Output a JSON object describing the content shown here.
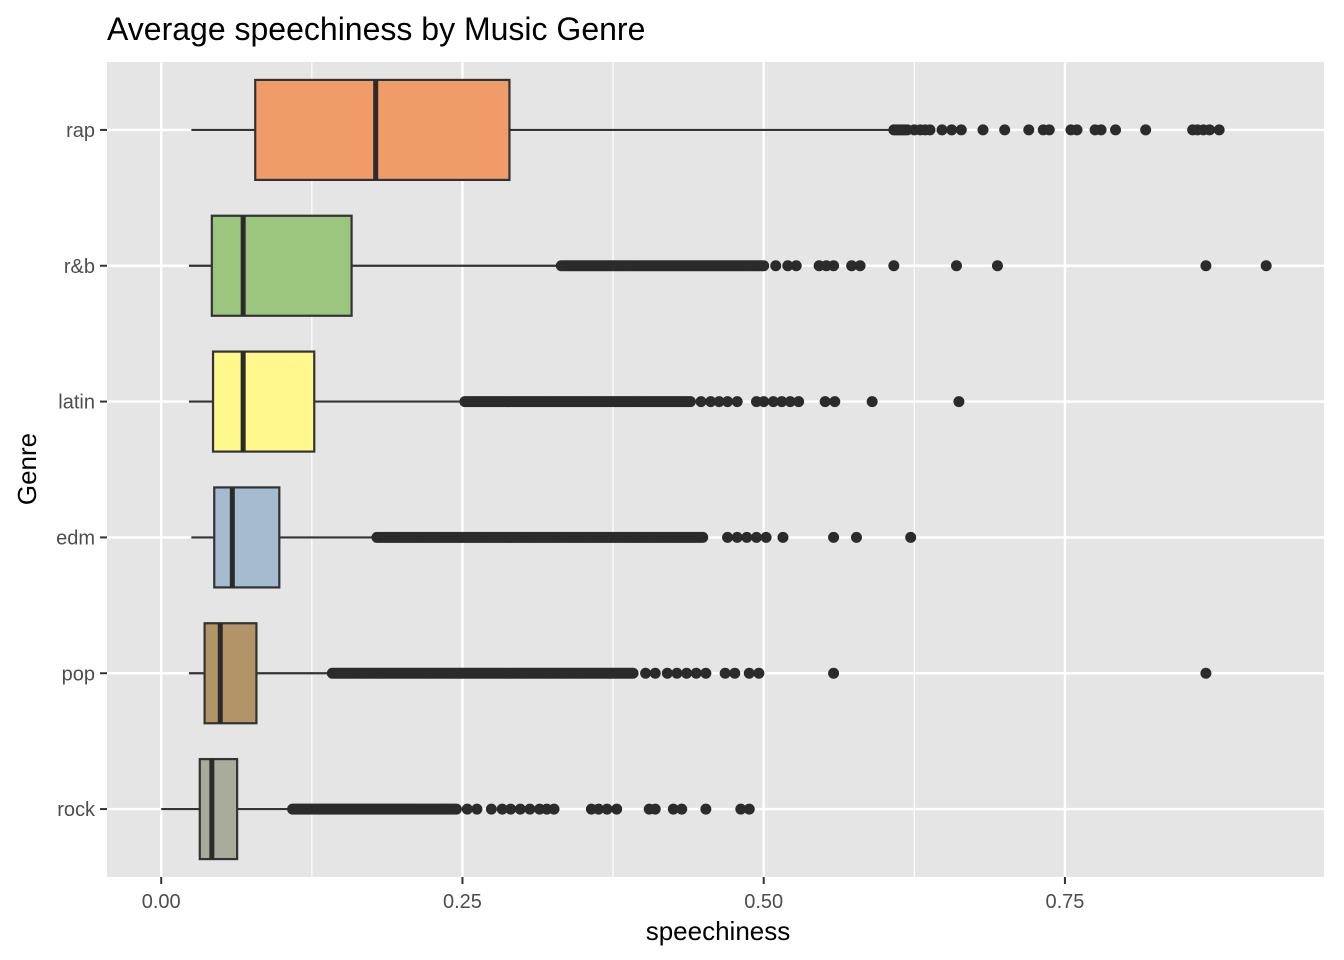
{
  "chart_data": {
    "type": "boxplot",
    "orientation": "horizontal",
    "title": "Average speechiness by Music Genre",
    "xlabel": "speechiness",
    "ylabel": "Genre",
    "xlim": [
      -0.045,
      0.965
    ],
    "x_ticks": [
      0.0,
      0.25,
      0.5,
      0.75
    ],
    "x_tick_labels": [
      "0.00",
      "0.25",
      "0.50",
      "0.75"
    ],
    "grid": true,
    "legend": "none",
    "background": "#e5e5e5",
    "grid_color": "#ffffff",
    "outlier_color": "#2b2b2b",
    "categories": [
      "rap",
      "r&b",
      "latin",
      "edm",
      "pop",
      "rock"
    ],
    "boxes": [
      {
        "genre": "rap",
        "fill": "#f09c69",
        "whisker_low": 0.025,
        "q1": 0.078,
        "median": 0.178,
        "q3": 0.289,
        "whisker_high": 0.608,
        "outlier_ranges": [
          [
            0.608,
            0.62
          ]
        ],
        "outliers": [
          0.625,
          0.63,
          0.634,
          0.638,
          0.648,
          0.656,
          0.664,
          0.682,
          0.7,
          0.72,
          0.732,
          0.737,
          0.755,
          0.76,
          0.775,
          0.78,
          0.792,
          0.817,
          0.856,
          0.86,
          0.865,
          0.87,
          0.878
        ]
      },
      {
        "genre": "r&b",
        "fill": "#9cc57e",
        "whisker_low": 0.023,
        "q1": 0.042,
        "median": 0.068,
        "q3": 0.158,
        "whisker_high": 0.332,
        "outlier_ranges": [
          [
            0.332,
            0.5
          ]
        ],
        "outliers": [
          0.51,
          0.52,
          0.527,
          0.546,
          0.552,
          0.558,
          0.573,
          0.58,
          0.608,
          0.66,
          0.694,
          0.867,
          0.917
        ]
      },
      {
        "genre": "latin",
        "fill": "#fff88d",
        "whisker_low": 0.023,
        "q1": 0.043,
        "median": 0.068,
        "q3": 0.127,
        "whisker_high": 0.252,
        "outlier_ranges": [
          [
            0.252,
            0.44
          ]
        ],
        "outliers": [
          0.448,
          0.456,
          0.463,
          0.47,
          0.478,
          0.494,
          0.5,
          0.508,
          0.515,
          0.522,
          0.529,
          0.551,
          0.559,
          0.59,
          0.662
        ]
      },
      {
        "genre": "edm",
        "fill": "#a4bbd0",
        "whisker_low": 0.025,
        "q1": 0.044,
        "median": 0.059,
        "q3": 0.098,
        "whisker_high": 0.179,
        "outlier_ranges": [
          [
            0.179,
            0.45
          ]
        ],
        "outliers": [
          0.47,
          0.478,
          0.486,
          0.494,
          0.502,
          0.516,
          0.558,
          0.577,
          0.622
        ]
      },
      {
        "genre": "pop",
        "fill": "#b29466",
        "whisker_low": 0.023,
        "q1": 0.036,
        "median": 0.049,
        "q3": 0.079,
        "whisker_high": 0.142,
        "outlier_ranges": [
          [
            0.142,
            0.392
          ]
        ],
        "outliers": [
          0.402,
          0.41,
          0.42,
          0.428,
          0.436,
          0.444,
          0.452,
          0.468,
          0.476,
          0.488,
          0.496,
          0.558,
          0.867
        ]
      },
      {
        "genre": "rock",
        "fill": "#a9ab9b",
        "whisker_low": 0.0,
        "q1": 0.032,
        "median": 0.042,
        "q3": 0.063,
        "whisker_high": 0.109,
        "outlier_ranges": [
          [
            0.109,
            0.245
          ]
        ],
        "outliers": [
          0.254,
          0.262,
          0.274,
          0.283,
          0.29,
          0.298,
          0.306,
          0.314,
          0.32,
          0.326,
          0.357,
          0.363,
          0.37,
          0.378,
          0.405,
          0.41,
          0.425,
          0.432,
          0.452,
          0.481,
          0.488
        ]
      }
    ]
  }
}
